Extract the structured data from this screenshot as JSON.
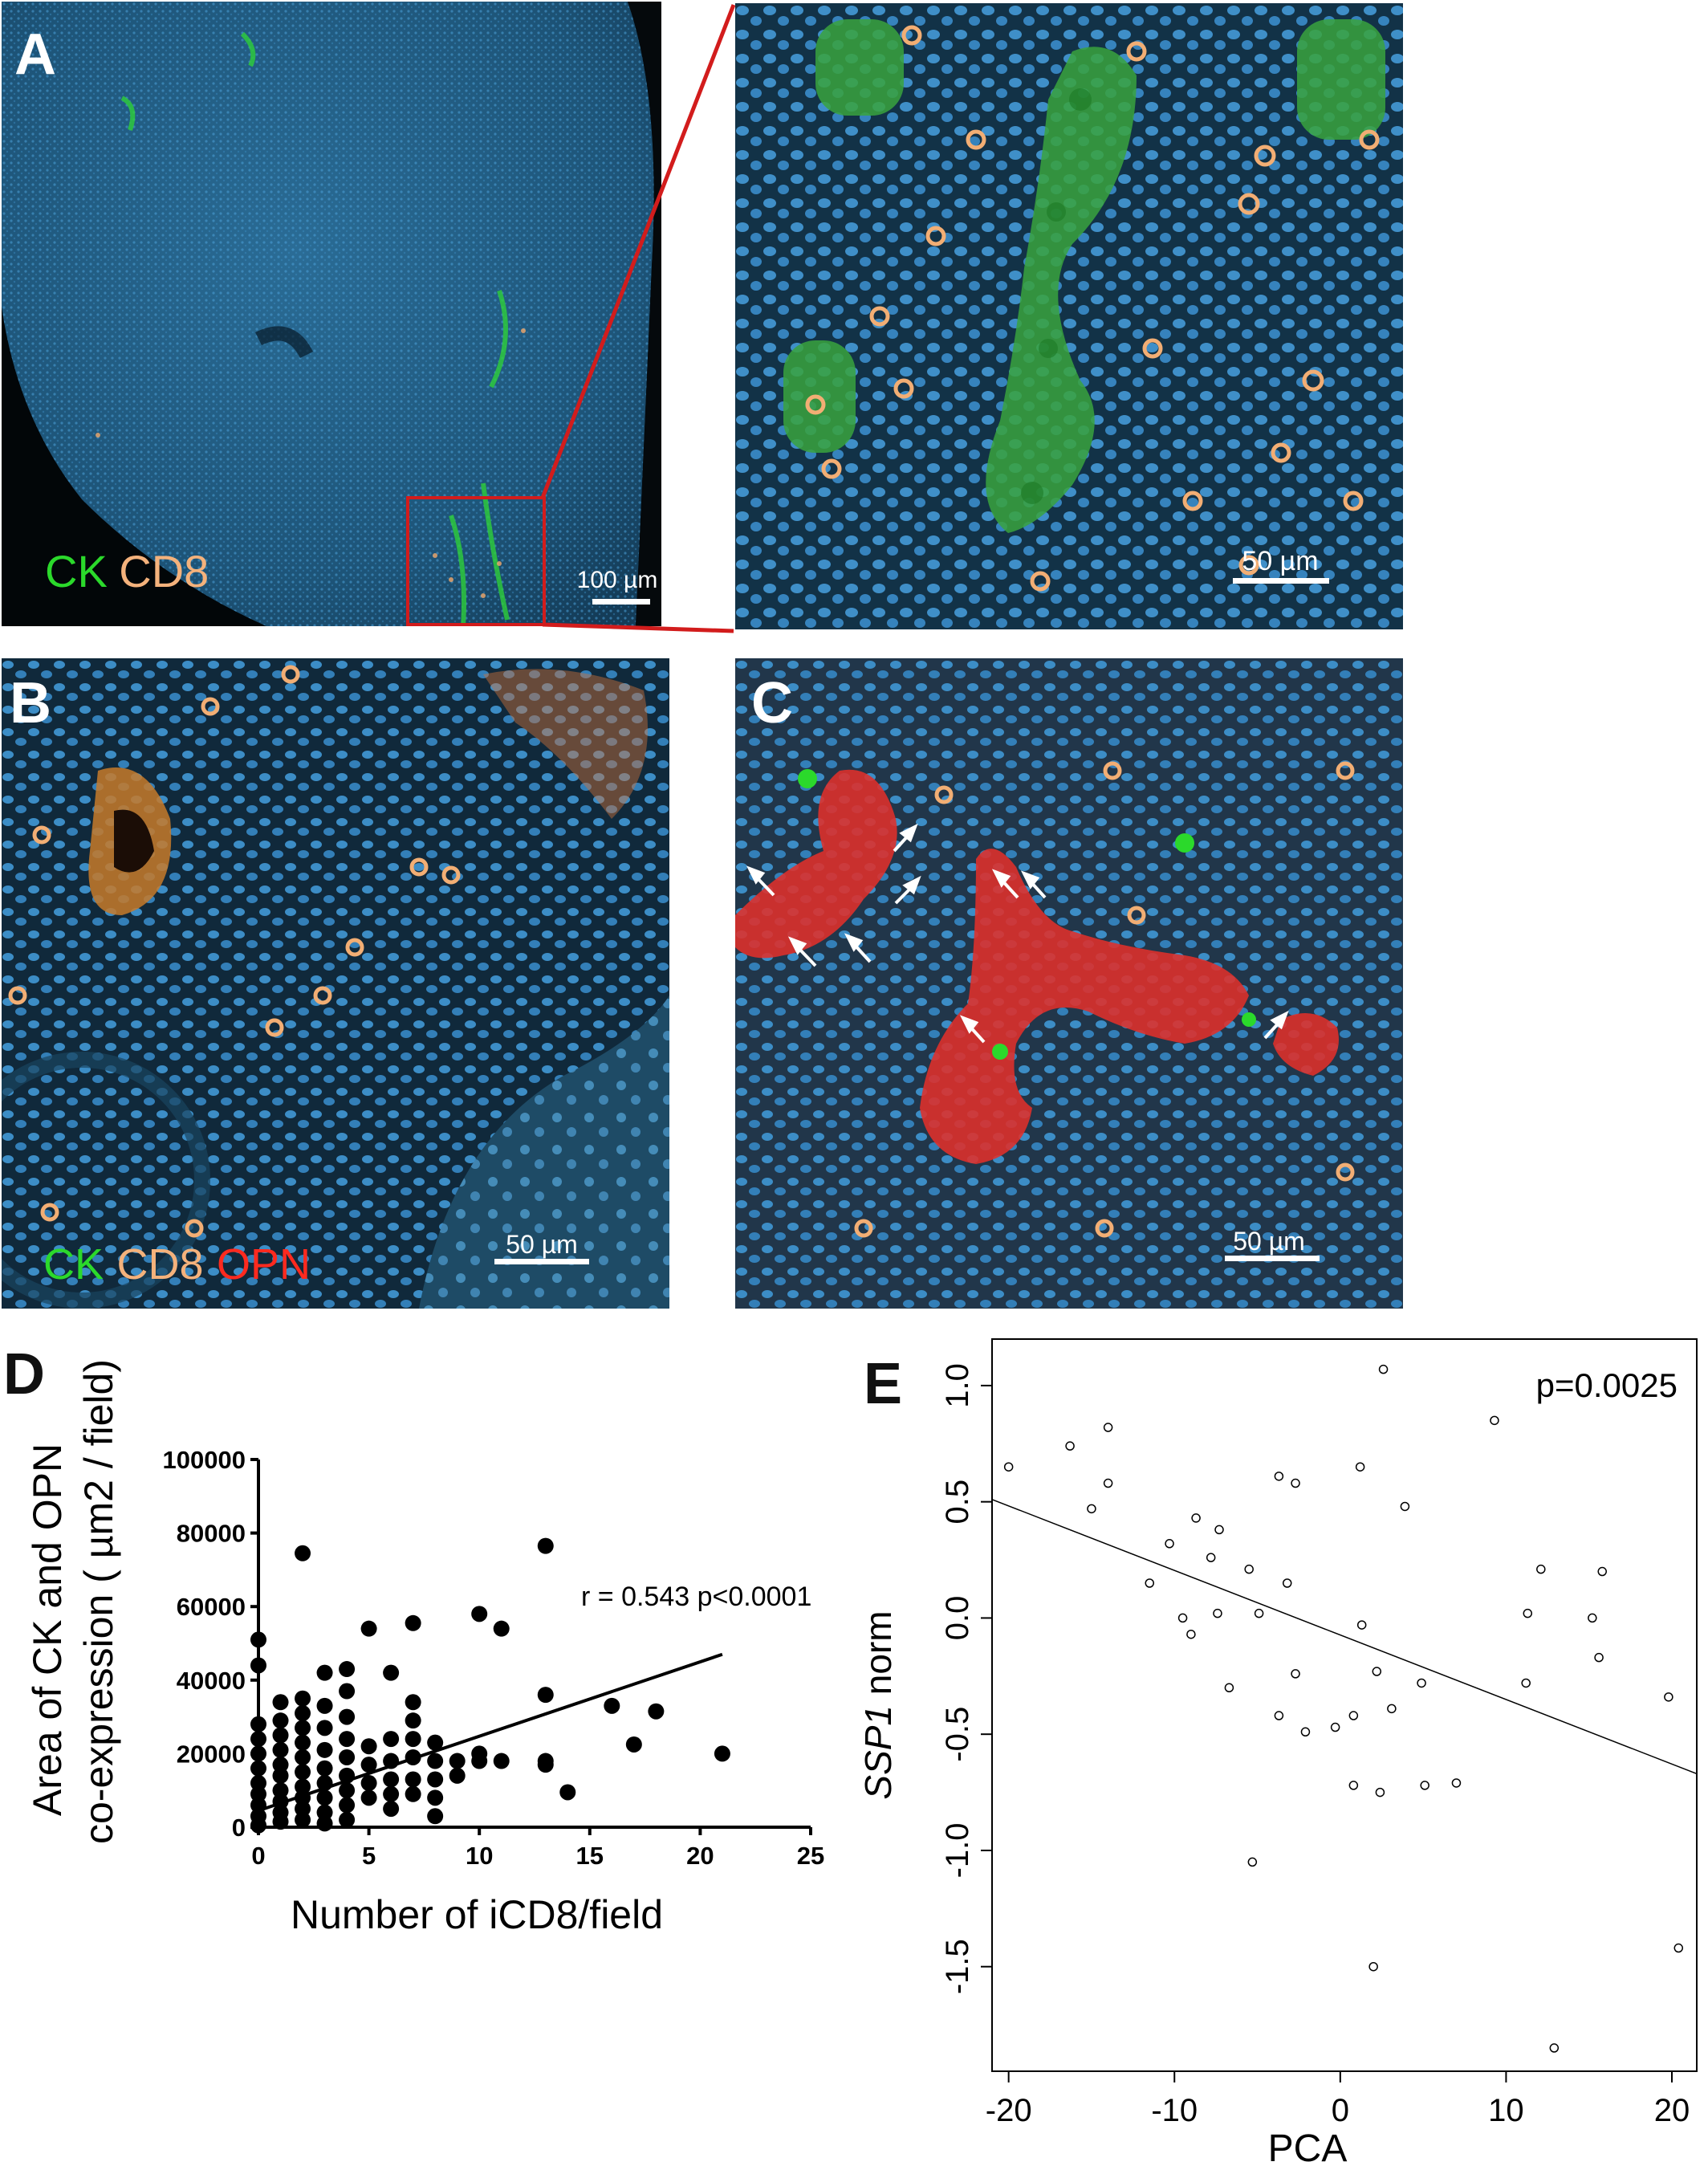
{
  "panels": {
    "A": {
      "letter": "A",
      "stain1": "CK",
      "stain2": "CD8",
      "scale": "100 µm",
      "zoom_scale": "50 µm"
    },
    "B": {
      "letter": "B",
      "stain1": "CK",
      "stain2": "CD8",
      "stain3": "OPN",
      "scale": "50 µm"
    },
    "C": {
      "letter": "C",
      "scale": "50 µm"
    },
    "D": {
      "letter": "D"
    },
    "E": {
      "letter": "E"
    }
  },
  "colors": {
    "ck": "#2bd92b",
    "cd8": "#f4b27c",
    "opn": "#ff2a1f",
    "nuclei": "#2f86c9",
    "zoom_box": "#d21c1c"
  },
  "chart_data": [
    {
      "id": "D",
      "type": "scatter",
      "xlabel": "Number of iCD8/field",
      "ylabel_line1": "Area of CK and OPN",
      "ylabel_line2": "co-expression ( µm2 / field)",
      "annotation": "r = 0.543 p<0.0001",
      "xlim": [
        0,
        25
      ],
      "ylim": [
        0,
        100000
      ],
      "xticks": [
        "0",
        "5",
        "10",
        "15",
        "20",
        "25"
      ],
      "yticks": [
        "0",
        "20000",
        "40000",
        "60000",
        "80000",
        "100000"
      ],
      "fit": {
        "x": [
          0,
          21
        ],
        "y": [
          4500,
          47000
        ]
      },
      "points": [
        [
          0,
          51000
        ],
        [
          0,
          44000
        ],
        [
          0,
          28000
        ],
        [
          0,
          24000
        ],
        [
          0,
          20000
        ],
        [
          0,
          16000
        ],
        [
          0,
          12000
        ],
        [
          0,
          9000
        ],
        [
          0,
          6000
        ],
        [
          0,
          3000
        ],
        [
          0,
          500
        ],
        [
          1,
          34000
        ],
        [
          1,
          29000
        ],
        [
          1,
          25000
        ],
        [
          1,
          21000
        ],
        [
          1,
          17000
        ],
        [
          1,
          14000
        ],
        [
          1,
          10000
        ],
        [
          1,
          7000
        ],
        [
          1,
          4000
        ],
        [
          1,
          1500
        ],
        [
          2,
          74500
        ],
        [
          2,
          35000
        ],
        [
          2,
          31000
        ],
        [
          2,
          27000
        ],
        [
          2,
          23000
        ],
        [
          2,
          19000
        ],
        [
          2,
          15000
        ],
        [
          2,
          11000
        ],
        [
          2,
          8000
        ],
        [
          2,
          5000
        ],
        [
          2,
          2000
        ],
        [
          3,
          42000
        ],
        [
          3,
          33000
        ],
        [
          3,
          27000
        ],
        [
          3,
          21000
        ],
        [
          3,
          16000
        ],
        [
          3,
          12000
        ],
        [
          3,
          8000
        ],
        [
          3,
          4000
        ],
        [
          3,
          1000
        ],
        [
          4,
          43000
        ],
        [
          4,
          37000
        ],
        [
          4,
          30000
        ],
        [
          4,
          24000
        ],
        [
          4,
          19000
        ],
        [
          4,
          14000
        ],
        [
          4,
          10000
        ],
        [
          4,
          6000
        ],
        [
          4,
          2000
        ],
        [
          5,
          54000
        ],
        [
          5,
          22000
        ],
        [
          5,
          17000
        ],
        [
          5,
          12000
        ],
        [
          5,
          8000
        ],
        [
          6,
          42000
        ],
        [
          6,
          24000
        ],
        [
          6,
          18000
        ],
        [
          6,
          13000
        ],
        [
          6,
          9000
        ],
        [
          6,
          5000
        ],
        [
          7,
          55500
        ],
        [
          7,
          34000
        ],
        [
          7,
          29000
        ],
        [
          7,
          24000
        ],
        [
          7,
          19000
        ],
        [
          7,
          13000
        ],
        [
          7,
          9000
        ],
        [
          8,
          23000
        ],
        [
          8,
          18000
        ],
        [
          8,
          13000
        ],
        [
          8,
          8000
        ],
        [
          8,
          3000
        ],
        [
          9,
          18000
        ],
        [
          9,
          14000
        ],
        [
          10,
          58000
        ],
        [
          10,
          20000
        ],
        [
          10,
          18000
        ],
        [
          11,
          54000
        ],
        [
          11,
          18000
        ],
        [
          13,
          76500
        ],
        [
          13,
          36000
        ],
        [
          13,
          18000
        ],
        [
          13,
          17000
        ],
        [
          14,
          9500
        ],
        [
          16,
          33000
        ],
        [
          17,
          22500
        ],
        [
          18,
          31500
        ],
        [
          21,
          20000
        ]
      ]
    },
    {
      "id": "E",
      "type": "scatter",
      "xlabel": "PCA",
      "ylabel_italic": "SSP1",
      "ylabel_rest": " norm",
      "annotation": "p=0.0025",
      "xlim": [
        -21,
        21.5
      ],
      "ylim": [
        -1.95,
        1.2
      ],
      "xticks": [
        "-20",
        "-10",
        "0",
        "10",
        "20"
      ],
      "yticks": [
        "-1.5",
        "-1.0",
        "-0.5",
        "0.0",
        "0.5",
        "1.0"
      ],
      "fit": {
        "x": [
          -21,
          21.5
        ],
        "y": [
          0.51,
          -0.67
        ]
      },
      "points": [
        [
          -20,
          0.65
        ],
        [
          -16.3,
          0.74
        ],
        [
          -15,
          0.47
        ],
        [
          -14,
          0.82
        ],
        [
          -14,
          0.58
        ],
        [
          -10.3,
          0.32
        ],
        [
          -11.5,
          0.15
        ],
        [
          -9.5,
          0.0
        ],
        [
          -9.0,
          -0.07
        ],
        [
          -8.7,
          0.43
        ],
        [
          -7.8,
          0.26
        ],
        [
          -7.3,
          0.38
        ],
        [
          -7.4,
          0.02
        ],
        [
          -6.7,
          -0.3
        ],
        [
          -5.5,
          0.21
        ],
        [
          -5.3,
          -1.05
        ],
        [
          -4.9,
          0.02
        ],
        [
          -3.7,
          -0.42
        ],
        [
          -3.7,
          0.61
        ],
        [
          -3.2,
          0.15
        ],
        [
          -2.7,
          0.58
        ],
        [
          -2.7,
          -0.24
        ],
        [
          -2.1,
          -0.49
        ],
        [
          -0.3,
          -0.47
        ],
        [
          0.8,
          -0.72
        ],
        [
          0.8,
          -0.42
        ],
        [
          1.2,
          0.65
        ],
        [
          1.3,
          -0.03
        ],
        [
          2.0,
          -1.5
        ],
        [
          2.2,
          -0.23
        ],
        [
          2.4,
          -0.75
        ],
        [
          2.6,
          1.07
        ],
        [
          3.1,
          -0.39
        ],
        [
          3.9,
          0.48
        ],
        [
          4.9,
          -0.28
        ],
        [
          5.1,
          -0.72
        ],
        [
          7.0,
          -0.71
        ],
        [
          9.3,
          0.85
        ],
        [
          11.2,
          -0.28
        ],
        [
          11.3,
          0.02
        ],
        [
          12.1,
          0.21
        ],
        [
          12.9,
          -1.85
        ],
        [
          15.2,
          0.0
        ],
        [
          15.6,
          -0.17
        ],
        [
          15.8,
          0.2
        ],
        [
          19.8,
          -0.34
        ],
        [
          20.4,
          -1.42
        ]
      ]
    }
  ]
}
